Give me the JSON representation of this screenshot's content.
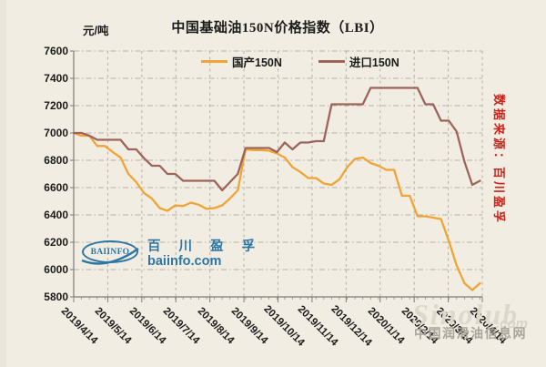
{
  "page": {
    "background": "#F1EDE2"
  },
  "header": {
    "title": "中国基础油150N价格指数（LBI）",
    "y_axis_unit": "元/吨"
  },
  "source_note": "数据来源：百川盈孚",
  "watermark_baiinfo": {
    "logo_text": "BAIINFO",
    "cn_name": "百 川 盈 孚",
    "site": "baiinfo.com",
    "color": "#1F6EA0"
  },
  "watermark_sinolub": {
    "script": "Sinolub",
    "com": ".com",
    "cn_name": "中国润滑油信息网"
  },
  "chart_data": {
    "type": "line",
    "title": "中国基础油150N价格指数（LBI）",
    "xlabel": "",
    "ylabel": "元/吨",
    "ylim": [
      5800,
      7600
    ],
    "yticks": [
      5800,
      6000,
      6200,
      6400,
      6600,
      6800,
      7000,
      7200,
      7400,
      7600
    ],
    "xtick_labels": [
      "2019/4/14",
      "2019/5/14",
      "2019/6/14",
      "2019/7/14",
      "2019/8/14",
      "2019/9/14",
      "2019/10/14",
      "2019/11/14",
      "2019/12/14",
      "2020/1/14",
      "2020/2/14",
      "2020/3/14",
      "2020/4/14"
    ],
    "grid": true,
    "legend_position": "top-center",
    "x": [
      "2019/4/14",
      "2019/4/21",
      "2019/4/28",
      "2019/5/5",
      "2019/5/12",
      "2019/5/19",
      "2019/5/26",
      "2019/6/2",
      "2019/6/9",
      "2019/6/16",
      "2019/6/23",
      "2019/6/30",
      "2019/7/7",
      "2019/7/14",
      "2019/7/21",
      "2019/7/28",
      "2019/8/4",
      "2019/8/11",
      "2019/8/18",
      "2019/8/25",
      "2019/9/1",
      "2019/9/8",
      "2019/9/15",
      "2019/9/22",
      "2019/9/29",
      "2019/10/6",
      "2019/10/13",
      "2019/10/20",
      "2019/10/27",
      "2019/11/3",
      "2019/11/10",
      "2019/11/17",
      "2019/11/24",
      "2019/12/1",
      "2019/12/8",
      "2019/12/15",
      "2019/12/22",
      "2019/12/29",
      "2020/1/5",
      "2020/1/12",
      "2020/1/19",
      "2020/1/26",
      "2020/2/2",
      "2020/2/9",
      "2020/2/16",
      "2020/2/23",
      "2020/3/1",
      "2020/3/8",
      "2020/3/15",
      "2020/3/22",
      "2020/3/29",
      "2020/4/5",
      "2020/4/12"
    ],
    "series": [
      {
        "name": "国产150N",
        "color": "#F0A435",
        "values": [
          7000,
          6980,
          6980,
          6905,
          6905,
          6860,
          6820,
          6700,
          6640,
          6560,
          6520,
          6450,
          6430,
          6470,
          6465,
          6490,
          6475,
          6445,
          6450,
          6470,
          6520,
          6580,
          6880,
          6875,
          6875,
          6870,
          6850,
          6820,
          6750,
          6715,
          6670,
          6670,
          6630,
          6620,
          6660,
          6750,
          6810,
          6820,
          6780,
          6760,
          6730,
          6730,
          6540,
          6540,
          6390,
          6390,
          6380,
          6370,
          6210,
          6030,
          5900,
          5850,
          5900
        ]
      },
      {
        "name": "进口150N",
        "color": "#9D655A",
        "values": [
          7000,
          7000,
          6980,
          6950,
          6950,
          6950,
          6950,
          6880,
          6880,
          6815,
          6760,
          6760,
          6700,
          6700,
          6650,
          6650,
          6650,
          6650,
          6650,
          6580,
          6640,
          6700,
          6890,
          6890,
          6890,
          6890,
          6860,
          6930,
          6880,
          6930,
          6930,
          6940,
          6940,
          7210,
          7210,
          7210,
          7210,
          7210,
          7330,
          7330,
          7330,
          7330,
          7330,
          7330,
          7330,
          7210,
          7210,
          7090,
          7090,
          7010,
          6790,
          6620,
          6650
        ]
      }
    ]
  }
}
